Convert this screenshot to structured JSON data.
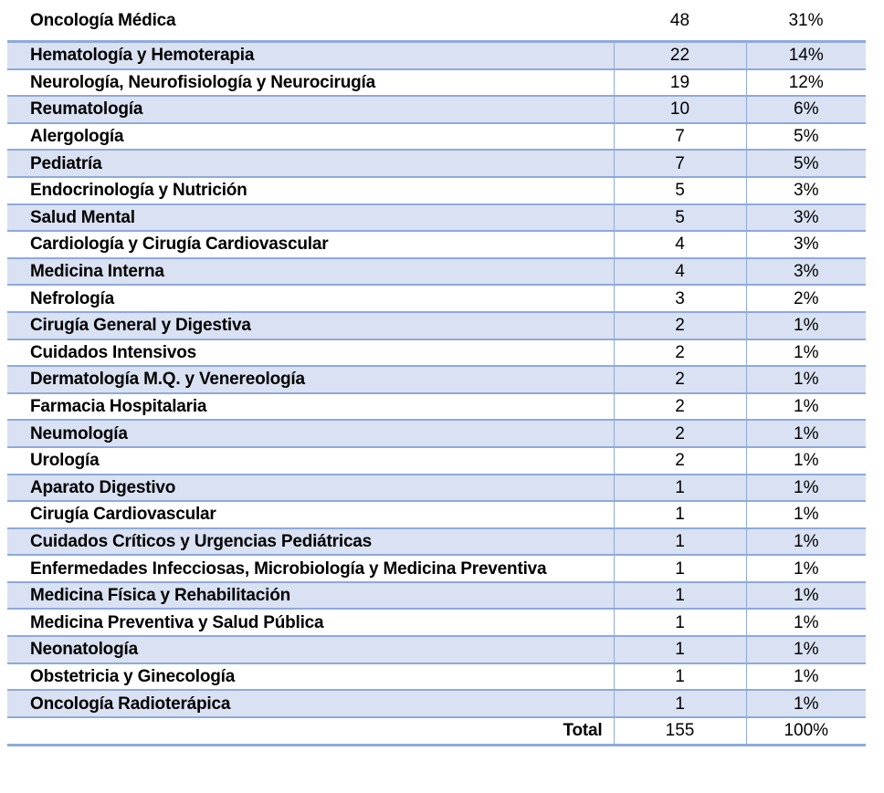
{
  "colors": {
    "border": "#8EAADB",
    "band": "#D9E1F2",
    "text": "#000000",
    "background": "#FFFFFF"
  },
  "table": {
    "rows": [
      {
        "name": "Oncología Médica",
        "count": "48",
        "pct": "31%"
      },
      {
        "name": "Hematología y Hemoterapia",
        "count": "22",
        "pct": "14%"
      },
      {
        "name": "Neurología, Neurofisiología y Neurocirugía",
        "count": "19",
        "pct": "12%"
      },
      {
        "name": "Reumatología",
        "count": "10",
        "pct": "6%"
      },
      {
        "name": "Alergología",
        "count": "7",
        "pct": "5%"
      },
      {
        "name": "Pediatría",
        "count": "7",
        "pct": "5%"
      },
      {
        "name": "Endocrinología y Nutrición",
        "count": "5",
        "pct": "3%"
      },
      {
        "name": "Salud Mental",
        "count": "5",
        "pct": "3%"
      },
      {
        "name": "Cardiología y Cirugía Cardiovascular",
        "count": "4",
        "pct": "3%"
      },
      {
        "name": "Medicina Interna",
        "count": "4",
        "pct": "3%"
      },
      {
        "name": "Nefrología",
        "count": "3",
        "pct": "2%"
      },
      {
        "name": "Cirugía General y Digestiva",
        "count": "2",
        "pct": "1%"
      },
      {
        "name": "Cuidados Intensivos",
        "count": "2",
        "pct": "1%"
      },
      {
        "name": "Dermatología M.Q. y Venereología",
        "count": "2",
        "pct": "1%"
      },
      {
        "name": "Farmacia Hospitalaria",
        "count": "2",
        "pct": "1%"
      },
      {
        "name": "Neumología",
        "count": "2",
        "pct": "1%"
      },
      {
        "name": "Urología",
        "count": "2",
        "pct": "1%"
      },
      {
        "name": "Aparato Digestivo",
        "count": "1",
        "pct": "1%"
      },
      {
        "name": "Cirugía Cardiovascular",
        "count": "1",
        "pct": "1%"
      },
      {
        "name": "Cuidados Críticos y Urgencias Pediátricas",
        "count": "1",
        "pct": "1%"
      },
      {
        "name": "Enfermedades Infecciosas, Microbiología y Medicina Preventiva",
        "count": "1",
        "pct": "1%"
      },
      {
        "name": "Medicina Física y Rehabilitación",
        "count": "1",
        "pct": "1%"
      },
      {
        "name": "Medicina Preventiva y Salud Pública",
        "count": "1",
        "pct": "1%"
      },
      {
        "name": "Neonatología",
        "count": "1",
        "pct": "1%"
      },
      {
        "name": "Obstetricia y Ginecología",
        "count": "1",
        "pct": "1%"
      },
      {
        "name": "Oncología Radioterápica",
        "count": "1",
        "pct": "1%"
      }
    ],
    "total": {
      "label": "Total",
      "count": "155",
      "pct": "100%"
    }
  }
}
